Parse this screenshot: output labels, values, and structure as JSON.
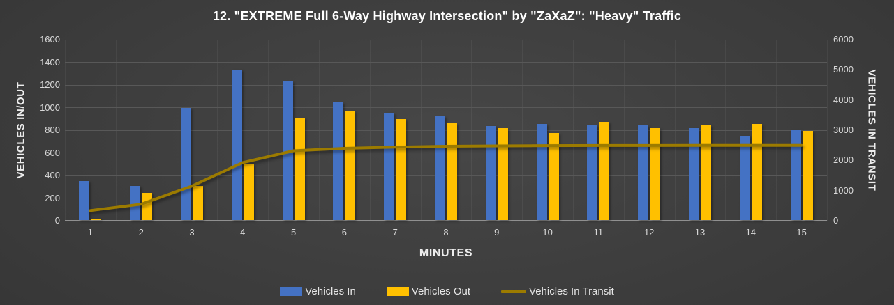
{
  "chart_data": {
    "type": "bar",
    "title": "12. \"EXTREME Full 6-Way Highway Intersection\" by \"ZaXaZ\": \"Heavy\" Traffic",
    "xlabel": "MINUTES",
    "ylabel_left": "VEHICLES IN/OUT",
    "ylabel_right": "VEHICLES IN TRANSIT",
    "categories": [
      1,
      2,
      3,
      4,
      5,
      6,
      7,
      8,
      9,
      10,
      11,
      12,
      13,
      14,
      15
    ],
    "series": [
      {
        "name": "Vehicles In",
        "type": "bar",
        "axis": "left",
        "color": "#4472C4",
        "values": [
          345,
          300,
          990,
          1330,
          1225,
          1040,
          945,
          920,
          830,
          850,
          840,
          840,
          810,
          745,
          800
        ]
      },
      {
        "name": "Vehicles Out",
        "type": "bar",
        "axis": "left",
        "color": "#FFC000",
        "values": [
          10,
          240,
          300,
          490,
          905,
          965,
          890,
          855,
          810,
          770,
          865,
          810,
          840,
          850,
          785
        ]
      },
      {
        "name": "Vehicles In Transit",
        "type": "line",
        "axis": "right",
        "color": "#9C7B00",
        "values": [
          340,
          550,
          1150,
          1930,
          2320,
          2400,
          2440,
          2470,
          2480,
          2490,
          2495,
          2495,
          2500,
          2500,
          2500
        ]
      }
    ],
    "y_left": {
      "min": 0,
      "max": 1600,
      "step": 200
    },
    "y_right": {
      "min": 0,
      "max": 6000,
      "step": 1000
    },
    "grid": true,
    "legend_position": "bottom",
    "background": "#3a3a3a",
    "grid_color": "#585858"
  }
}
